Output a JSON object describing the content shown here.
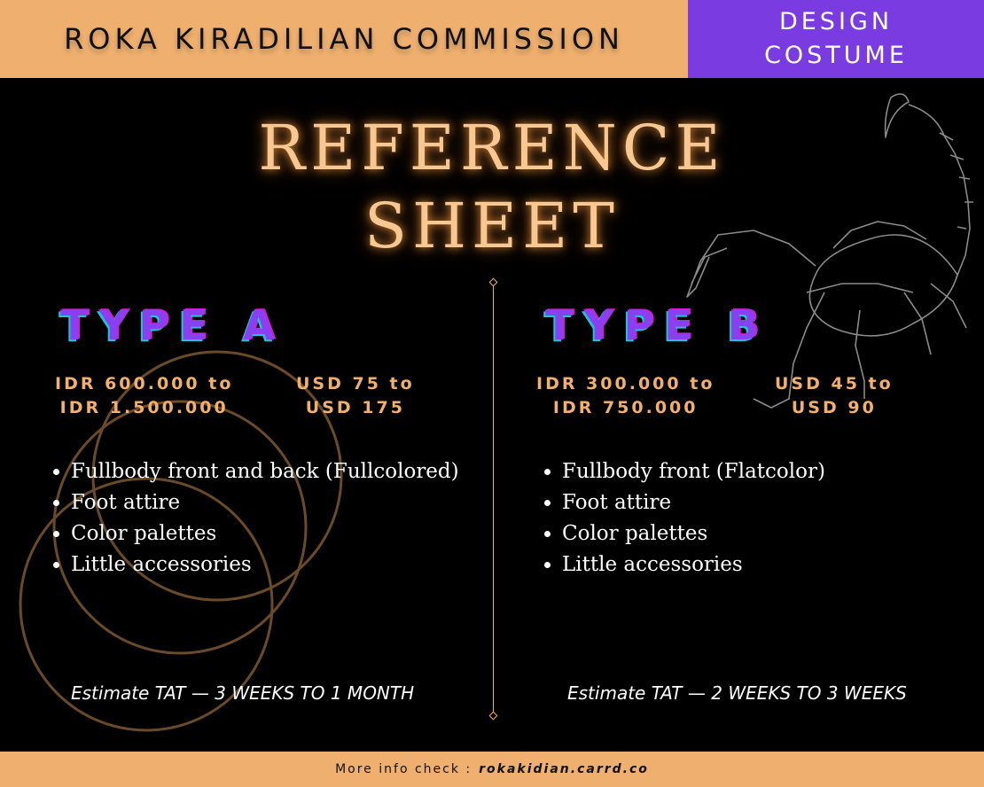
{
  "header": {
    "title": "ROKA KIRADILIAN COMMISSION",
    "badge_line1": "DESIGN",
    "badge_line2": "COSTUME"
  },
  "main": {
    "title_line1": "REFERENCE",
    "title_line2": "SHEET",
    "types": [
      {
        "name": "TYPE A",
        "idr_line1": "IDR 600.000 to",
        "idr_line2": "IDR 1.500.000",
        "usd_line1": "USD 75 to",
        "usd_line2": "USD 175",
        "features": [
          "Fullbody front and back (Fullcolored)",
          "Foot attire",
          "Color palettes",
          "Little accessories"
        ],
        "tat": "Estimate TAT — 3 WEEKS TO 1 MONTH"
      },
      {
        "name": "TYPE B",
        "idr_line1": "IDR 300.000 to",
        "idr_line2": "IDR 750.000",
        "usd_line1": "USD 45 to",
        "usd_line2": "USD 90",
        "features": [
          "Fullbody front (Flatcolor)",
          "Foot attire",
          "Color palettes",
          "Little accessories"
        ],
        "tat": "Estimate TAT — 2 WEEKS TO 3 WEEKS"
      }
    ]
  },
  "footer": {
    "label": "More info check :",
    "link": "rokakidian.carrd.co"
  },
  "colors": {
    "orange": "#efb06f",
    "purple": "#7a3ce0",
    "glow": "#f8c893"
  },
  "decorations": [
    "scorpion-outline",
    "overlapping-circles"
  ]
}
